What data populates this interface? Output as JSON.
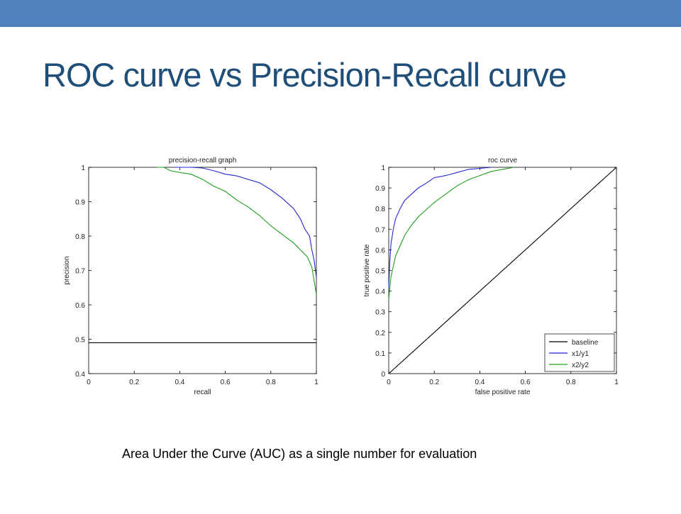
{
  "slide": {
    "title": "ROC curve vs Precision-Recall curve",
    "caption": "Area Under the Curve (AUC) as a single number for evaluation",
    "accent_color": "#4f81bd",
    "title_color": "#1f4e79"
  },
  "chart_data": [
    {
      "type": "line",
      "title": "precision-recall graph",
      "xlabel": "recall",
      "ylabel": "precision",
      "xlim": [
        0,
        1
      ],
      "ylim": [
        0.4,
        1
      ],
      "xticks": [
        0,
        0.2,
        0.4,
        0.6,
        0.8,
        1
      ],
      "yticks": [
        0.4,
        0.5,
        0.6,
        0.7,
        0.8,
        0.9,
        1
      ],
      "grid": false,
      "series": [
        {
          "color": "#000000",
          "x": [
            0,
            1
          ],
          "y": [
            0.49,
            0.49
          ]
        },
        {
          "color": "#2626d4",
          "x": [
            0.38,
            0.45,
            0.5,
            0.55,
            0.6,
            0.65,
            0.7,
            0.75,
            0.8,
            0.85,
            0.9,
            0.93,
            0.95,
            0.97,
            0.98,
            0.99,
            1.0
          ],
          "y": [
            1.0,
            1.0,
            0.998,
            0.99,
            0.98,
            0.975,
            0.965,
            0.955,
            0.935,
            0.91,
            0.88,
            0.85,
            0.82,
            0.8,
            0.76,
            0.73,
            0.68
          ]
        },
        {
          "color": "#1e9e1e",
          "x": [
            0.3,
            0.33,
            0.36,
            0.4,
            0.45,
            0.5,
            0.55,
            0.6,
            0.65,
            0.7,
            0.75,
            0.8,
            0.85,
            0.9,
            0.93,
            0.96,
            0.98,
            1.0
          ],
          "y": [
            1.0,
            1.0,
            0.99,
            0.985,
            0.98,
            0.965,
            0.945,
            0.93,
            0.905,
            0.885,
            0.86,
            0.83,
            0.805,
            0.78,
            0.76,
            0.74,
            0.71,
            0.63
          ]
        }
      ]
    },
    {
      "type": "line",
      "title": "roc curve",
      "xlabel": "false positive rate",
      "ylabel": "true positive rate",
      "xlim": [
        0,
        1
      ],
      "ylim": [
        0,
        1
      ],
      "xticks": [
        0,
        0.2,
        0.4,
        0.6,
        0.8,
        1
      ],
      "yticks": [
        0,
        0.1,
        0.2,
        0.3,
        0.4,
        0.5,
        0.6,
        0.7,
        0.8,
        0.9,
        1
      ],
      "grid": false,
      "legend_position": "bottom-right",
      "series": [
        {
          "name": "baseline",
          "color": "#000000",
          "x": [
            0,
            1
          ],
          "y": [
            0,
            1
          ]
        },
        {
          "name": "x1/y1",
          "color": "#2626d4",
          "x": [
            0,
            0.005,
            0.01,
            0.02,
            0.03,
            0.05,
            0.07,
            0.1,
            0.13,
            0.16,
            0.2,
            0.25,
            0.3,
            0.35,
            0.4,
            0.45
          ],
          "y": [
            0.42,
            0.55,
            0.63,
            0.7,
            0.75,
            0.8,
            0.84,
            0.87,
            0.9,
            0.92,
            0.95,
            0.96,
            0.975,
            0.99,
            0.995,
            1.0
          ]
        },
        {
          "name": "x2/y2",
          "color": "#1e9e1e",
          "x": [
            0,
            0.005,
            0.01,
            0.02,
            0.03,
            0.05,
            0.07,
            0.1,
            0.13,
            0.16,
            0.2,
            0.25,
            0.3,
            0.35,
            0.4,
            0.45,
            0.5,
            0.55
          ],
          "y": [
            0.36,
            0.42,
            0.47,
            0.52,
            0.57,
            0.62,
            0.67,
            0.72,
            0.76,
            0.79,
            0.83,
            0.87,
            0.91,
            0.94,
            0.96,
            0.98,
            0.99,
            1.0
          ]
        }
      ]
    }
  ]
}
